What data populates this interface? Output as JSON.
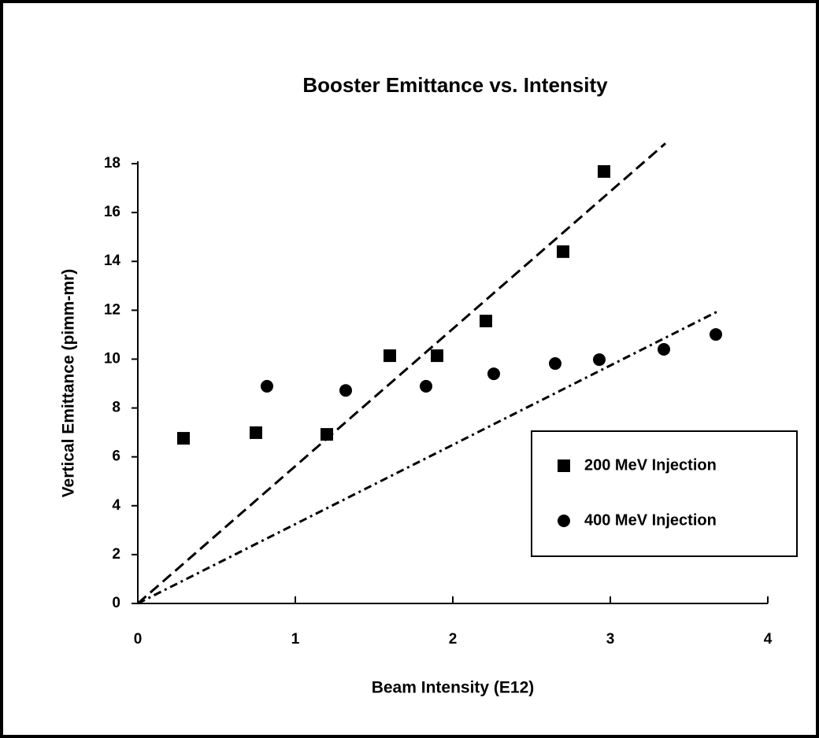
{
  "chart_data": {
    "type": "scatter",
    "title": "Booster  Emittance  vs.  Intensity",
    "xlabel": "Beam  Intensity  (E12)",
    "ylabel": "Vertical  Emittance  (pimm-mr)",
    "xlim": [
      0,
      4
    ],
    "ylim": [
      0,
      18
    ],
    "xticks": [
      0,
      1,
      2,
      3,
      4
    ],
    "yticks": [
      0,
      2,
      4,
      6,
      8,
      10,
      12,
      14,
      16,
      18
    ],
    "legend": "lower right",
    "series": [
      {
        "name": "200 MeV  Injection",
        "marker": "square",
        "color": "#000000",
        "x": [
          0.29,
          0.75,
          1.2,
          1.6,
          1.9,
          2.21,
          2.7,
          2.96
        ],
        "values": [
          6.76,
          6.99,
          6.92,
          10.14,
          10.14,
          11.56,
          14.4,
          17.68
        ]
      },
      {
        "name": "400 MeV  Injection",
        "marker": "circle",
        "color": "#000000",
        "x": [
          0.82,
          1.32,
          1.83,
          2.26,
          2.65,
          2.93,
          3.34,
          3.67
        ],
        "values": [
          8.89,
          8.72,
          8.89,
          9.4,
          9.82,
          9.98,
          10.4,
          11.01
        ]
      }
    ],
    "fits": [
      {
        "style": "dashed",
        "color": "#000000",
        "x": [
          0,
          3.35
        ],
        "values": [
          0,
          18.83
        ]
      },
      {
        "style": "dashdot",
        "color": "#000000",
        "x": [
          0,
          3.69
        ],
        "values": [
          0,
          11.98
        ]
      }
    ]
  }
}
